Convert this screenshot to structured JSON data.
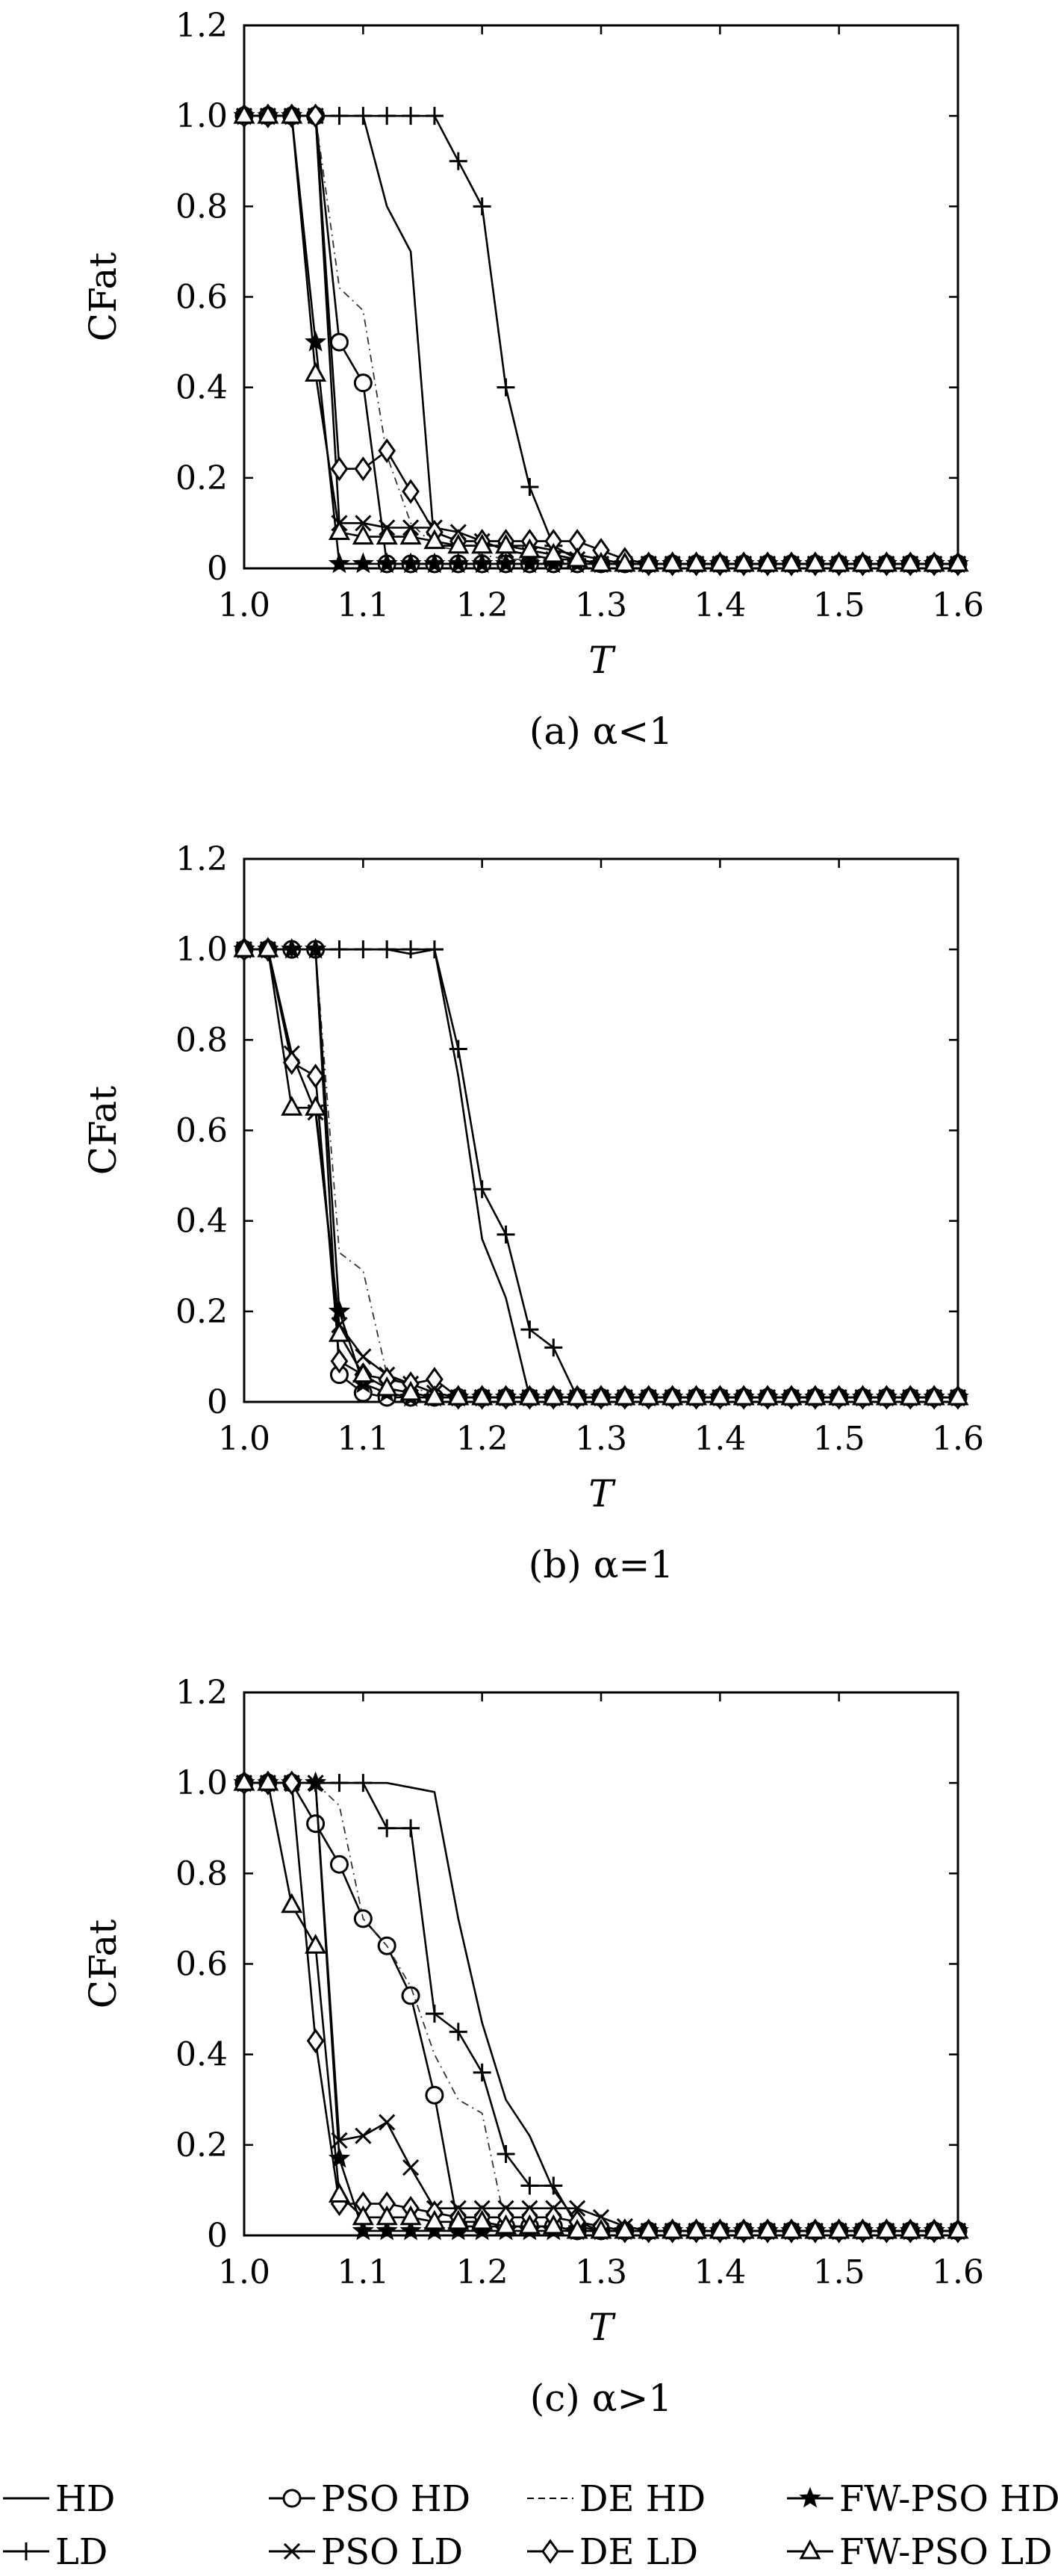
{
  "legend": [
    {
      "label": "HD",
      "marker": "none",
      "dash": "solid"
    },
    {
      "label": "PSO HD",
      "marker": "circle",
      "dash": "solid"
    },
    {
      "label": "DE HD",
      "marker": "none",
      "dash": "dashed"
    },
    {
      "label": "FW-PSO HD",
      "marker": "star",
      "dash": "solid"
    },
    {
      "label": "LD",
      "marker": "plus",
      "dash": "solid"
    },
    {
      "label": "PSO LD",
      "marker": "x",
      "dash": "solid"
    },
    {
      "label": "DE LD",
      "marker": "diamond",
      "dash": "solid"
    },
    {
      "label": "FW-PSO LD",
      "marker": "triangle",
      "dash": "solid"
    }
  ],
  "chart_data": [
    {
      "type": "line",
      "caption": "(a) α<1",
      "xlabel": "T",
      "ylabel": "CFat",
      "xlim": [
        1.0,
        1.6
      ],
      "ylim": [
        0,
        1.2
      ],
      "xticks": [
        "1.0",
        "1.1",
        "1.2",
        "1.3",
        "1.4",
        "1.5",
        "1.6"
      ],
      "yticks": [
        "0",
        "0.2",
        "0.4",
        "0.6",
        "0.8",
        "1.0",
        "1.2"
      ],
      "grid": false,
      "x": [
        1.0,
        1.02,
        1.04,
        1.06,
        1.08,
        1.1,
        1.12,
        1.14,
        1.16,
        1.18,
        1.2,
        1.22,
        1.24,
        1.26,
        1.28,
        1.3,
        1.32,
        1.34,
        1.36,
        1.38,
        1.4,
        1.42,
        1.44,
        1.46,
        1.48,
        1.5,
        1.52,
        1.54,
        1.56,
        1.58,
        1.6
      ],
      "series": [
        {
          "name": "HD",
          "values": [
            1.0,
            1.0,
            1.0,
            1.0,
            1.0,
            1.0,
            0.8,
            0.7,
            0.05,
            0.05,
            0.05,
            0.05,
            0.05,
            0.04,
            0.03,
            0.02,
            0.01,
            0.01,
            0.01,
            0.01,
            0.01,
            0.01,
            0.01,
            0.01,
            0.01,
            0.01,
            0.01,
            0.01,
            0.01,
            0.01,
            0.01
          ]
        },
        {
          "name": "PSO HD",
          "values": [
            1.0,
            1.0,
            1.0,
            1.0,
            0.5,
            0.41,
            0.01,
            0.01,
            0.01,
            0.01,
            0.01,
            0.01,
            0.01,
            0.01,
            0.01,
            0.01,
            0.01,
            0.01,
            0.01,
            0.01,
            0.01,
            0.01,
            0.01,
            0.01,
            0.01,
            0.01,
            0.01,
            0.01,
            0.01,
            0.01,
            0.01
          ]
        },
        {
          "name": "DE HD",
          "values": [
            1.0,
            1.0,
            1.0,
            1.0,
            0.62,
            0.57,
            0.25,
            0.1,
            0.05,
            0.04,
            0.03,
            0.02,
            0.02,
            0.02,
            0.01,
            0.01,
            0.01,
            0.01,
            0.01,
            0.01,
            0.01,
            0.01,
            0.01,
            0.01,
            0.01,
            0.01,
            0.01,
            0.01,
            0.01,
            0.01,
            0.01
          ]
        },
        {
          "name": "FW-PSO HD",
          "values": [
            1.0,
            1.0,
            1.0,
            0.5,
            0.01,
            0.01,
            0.01,
            0.01,
            0.01,
            0.01,
            0.01,
            0.01,
            0.01,
            0.01,
            0.01,
            0.01,
            0.01,
            0.01,
            0.01,
            0.01,
            0.01,
            0.01,
            0.01,
            0.01,
            0.01,
            0.01,
            0.01,
            0.01,
            0.01,
            0.01,
            0.01
          ]
        },
        {
          "name": "LD",
          "values": [
            1.0,
            1.0,
            1.0,
            1.0,
            1.0,
            1.0,
            1.0,
            1.0,
            1.0,
            0.9,
            0.8,
            0.4,
            0.18,
            0.05,
            0.02,
            0.01,
            0.01,
            0.01,
            0.01,
            0.01,
            0.01,
            0.01,
            0.01,
            0.01,
            0.01,
            0.01,
            0.01,
            0.01,
            0.01,
            0.01,
            0.01
          ]
        },
        {
          "name": "PSO LD",
          "values": [
            1.0,
            1.0,
            1.0,
            1.0,
            0.1,
            0.1,
            0.09,
            0.09,
            0.09,
            0.08,
            0.06,
            0.04,
            0.03,
            0.02,
            0.02,
            0.01,
            0.01,
            0.01,
            0.01,
            0.01,
            0.01,
            0.01,
            0.01,
            0.01,
            0.01,
            0.01,
            0.01,
            0.01,
            0.01,
            0.01,
            0.01
          ]
        },
        {
          "name": "DE LD",
          "values": [
            1.0,
            1.0,
            1.0,
            1.0,
            0.22,
            0.22,
            0.26,
            0.17,
            0.08,
            0.06,
            0.06,
            0.06,
            0.06,
            0.06,
            0.06,
            0.04,
            0.02,
            0.01,
            0.01,
            0.01,
            0.01,
            0.01,
            0.01,
            0.01,
            0.01,
            0.01,
            0.01,
            0.01,
            0.01,
            0.01,
            0.01
          ]
        },
        {
          "name": "FW-PSO LD",
          "values": [
            1.0,
            1.0,
            1.0,
            0.43,
            0.08,
            0.07,
            0.07,
            0.07,
            0.06,
            0.05,
            0.05,
            0.05,
            0.04,
            0.03,
            0.02,
            0.01,
            0.01,
            0.01,
            0.01,
            0.01,
            0.01,
            0.01,
            0.01,
            0.01,
            0.01,
            0.01,
            0.01,
            0.01,
            0.01,
            0.01,
            0.01
          ]
        }
      ]
    },
    {
      "type": "line",
      "caption": "(b) α=1",
      "xlabel": "T",
      "ylabel": "CFat",
      "xlim": [
        1.0,
        1.6
      ],
      "ylim": [
        0,
        1.2
      ],
      "xticks": [
        "1.0",
        "1.1",
        "1.2",
        "1.3",
        "1.4",
        "1.5",
        "1.6"
      ],
      "yticks": [
        "0",
        "0.2",
        "0.4",
        "0.6",
        "0.8",
        "1.0",
        "1.2"
      ],
      "grid": false,
      "x": [
        1.0,
        1.02,
        1.04,
        1.06,
        1.08,
        1.1,
        1.12,
        1.14,
        1.16,
        1.18,
        1.2,
        1.22,
        1.24,
        1.26,
        1.28,
        1.3,
        1.32,
        1.34,
        1.36,
        1.38,
        1.4,
        1.42,
        1.44,
        1.46,
        1.48,
        1.5,
        1.52,
        1.54,
        1.56,
        1.58,
        1.6
      ],
      "series": [
        {
          "name": "HD",
          "values": [
            1.0,
            1.0,
            1.0,
            1.0,
            1.0,
            1.0,
            1.0,
            0.99,
            1.0,
            0.72,
            0.36,
            0.23,
            0.01,
            0.01,
            0.01,
            0.01,
            0.01,
            0.01,
            0.01,
            0.01,
            0.01,
            0.01,
            0.01,
            0.01,
            0.01,
            0.01,
            0.01,
            0.01,
            0.01,
            0.01,
            0.01
          ]
        },
        {
          "name": "PSO HD",
          "values": [
            1.0,
            1.0,
            1.0,
            1.0,
            0.06,
            0.02,
            0.01,
            0.01,
            0.01,
            0.01,
            0.01,
            0.01,
            0.01,
            0.01,
            0.01,
            0.01,
            0.01,
            0.01,
            0.01,
            0.01,
            0.01,
            0.01,
            0.01,
            0.01,
            0.01,
            0.01,
            0.01,
            0.01,
            0.01,
            0.01,
            0.01
          ]
        },
        {
          "name": "DE HD",
          "values": [
            1.0,
            1.0,
            1.0,
            1.0,
            0.33,
            0.29,
            0.06,
            0.03,
            0.02,
            0.01,
            0.01,
            0.01,
            0.01,
            0.01,
            0.01,
            0.01,
            0.01,
            0.01,
            0.01,
            0.01,
            0.01,
            0.01,
            0.01,
            0.01,
            0.01,
            0.01,
            0.01,
            0.01,
            0.01,
            0.01,
            0.01
          ]
        },
        {
          "name": "FW-PSO HD",
          "values": [
            1.0,
            1.0,
            1.0,
            1.0,
            0.2,
            0.04,
            0.02,
            0.01,
            0.01,
            0.01,
            0.01,
            0.01,
            0.01,
            0.01,
            0.01,
            0.01,
            0.01,
            0.01,
            0.01,
            0.01,
            0.01,
            0.01,
            0.01,
            0.01,
            0.01,
            0.01,
            0.01,
            0.01,
            0.01,
            0.01,
            0.01
          ]
        },
        {
          "name": "LD",
          "values": [
            1.0,
            1.0,
            1.0,
            1.0,
            1.0,
            1.0,
            1.0,
            1.0,
            1.0,
            0.78,
            0.47,
            0.37,
            0.16,
            0.12,
            0.01,
            0.01,
            0.01,
            0.01,
            0.01,
            0.01,
            0.01,
            0.01,
            0.01,
            0.01,
            0.01,
            0.01,
            0.01,
            0.01,
            0.01,
            0.01,
            0.01
          ]
        },
        {
          "name": "PSO LD",
          "values": [
            1.0,
            1.0,
            0.77,
            0.64,
            0.17,
            0.1,
            0.06,
            0.04,
            0.02,
            0.01,
            0.01,
            0.01,
            0.01,
            0.01,
            0.01,
            0.01,
            0.01,
            0.01,
            0.01,
            0.01,
            0.01,
            0.01,
            0.01,
            0.01,
            0.01,
            0.01,
            0.01,
            0.01,
            0.01,
            0.01,
            0.01
          ]
        },
        {
          "name": "DE LD",
          "values": [
            1.0,
            1.0,
            0.75,
            0.72,
            0.09,
            0.06,
            0.05,
            0.04,
            0.05,
            0.01,
            0.01,
            0.01,
            0.01,
            0.01,
            0.01,
            0.01,
            0.01,
            0.01,
            0.01,
            0.01,
            0.01,
            0.01,
            0.01,
            0.01,
            0.01,
            0.01,
            0.01,
            0.01,
            0.01,
            0.01,
            0.01
          ]
        },
        {
          "name": "FW-PSO LD",
          "values": [
            1.0,
            1.0,
            0.65,
            0.65,
            0.15,
            0.06,
            0.03,
            0.02,
            0.01,
            0.01,
            0.01,
            0.01,
            0.01,
            0.01,
            0.01,
            0.01,
            0.01,
            0.01,
            0.01,
            0.01,
            0.01,
            0.01,
            0.01,
            0.01,
            0.01,
            0.01,
            0.01,
            0.01,
            0.01,
            0.01,
            0.01
          ]
        }
      ]
    },
    {
      "type": "line",
      "caption": "(c) α>1",
      "xlabel": "T",
      "ylabel": "CFat",
      "xlim": [
        1.0,
        1.6
      ],
      "ylim": [
        0,
        1.2
      ],
      "xticks": [
        "1.0",
        "1.1",
        "1.2",
        "1.3",
        "1.4",
        "1.5",
        "1.6"
      ],
      "yticks": [
        "0",
        "0.2",
        "0.4",
        "0.6",
        "0.8",
        "1.0",
        "1.2"
      ],
      "grid": false,
      "x": [
        1.0,
        1.02,
        1.04,
        1.06,
        1.08,
        1.1,
        1.12,
        1.14,
        1.16,
        1.18,
        1.2,
        1.22,
        1.24,
        1.26,
        1.28,
        1.3,
        1.32,
        1.34,
        1.36,
        1.38,
        1.4,
        1.42,
        1.44,
        1.46,
        1.48,
        1.5,
        1.52,
        1.54,
        1.56,
        1.58,
        1.6
      ],
      "series": [
        {
          "name": "HD",
          "values": [
            1.0,
            1.0,
            1.0,
            1.0,
            1.0,
            1.0,
            1.0,
            0.99,
            0.98,
            0.7,
            0.47,
            0.3,
            0.22,
            0.1,
            0.03,
            0.01,
            0.01,
            0.01,
            0.01,
            0.01,
            0.01,
            0.01,
            0.01,
            0.01,
            0.01,
            0.01,
            0.01,
            0.01,
            0.01,
            0.01,
            0.01
          ]
        },
        {
          "name": "PSO HD",
          "values": [
            1.0,
            1.0,
            1.0,
            0.91,
            0.82,
            0.7,
            0.64,
            0.53,
            0.31,
            0.02,
            0.02,
            0.02,
            0.02,
            0.02,
            0.01,
            0.01,
            0.01,
            0.01,
            0.01,
            0.01,
            0.01,
            0.01,
            0.01,
            0.01,
            0.01,
            0.01,
            0.01,
            0.01,
            0.01,
            0.01,
            0.01
          ]
        },
        {
          "name": "DE HD",
          "values": [
            1.0,
            1.0,
            1.0,
            1.0,
            0.95,
            0.7,
            0.64,
            0.55,
            0.4,
            0.3,
            0.27,
            0.02,
            0.02,
            0.02,
            0.01,
            0.01,
            0.01,
            0.01,
            0.01,
            0.01,
            0.01,
            0.01,
            0.01,
            0.01,
            0.01,
            0.01,
            0.01,
            0.01,
            0.01,
            0.01,
            0.01
          ]
        },
        {
          "name": "FW-PSO HD",
          "values": [
            1.0,
            1.0,
            1.0,
            1.0,
            0.17,
            0.01,
            0.01,
            0.01,
            0.01,
            0.01,
            0.01,
            0.01,
            0.01,
            0.01,
            0.01,
            0.01,
            0.01,
            0.01,
            0.01,
            0.01,
            0.01,
            0.01,
            0.01,
            0.01,
            0.01,
            0.01,
            0.01,
            0.01,
            0.01,
            0.01,
            0.01
          ]
        },
        {
          "name": "LD",
          "values": [
            1.0,
            1.0,
            1.0,
            1.0,
            1.0,
            1.0,
            0.9,
            0.9,
            0.49,
            0.45,
            0.36,
            0.18,
            0.11,
            0.11,
            0.02,
            0.01,
            0.01,
            0.01,
            0.01,
            0.01,
            0.01,
            0.01,
            0.01,
            0.01,
            0.01,
            0.01,
            0.01,
            0.01,
            0.01,
            0.01,
            0.01
          ]
        },
        {
          "name": "PSO LD",
          "values": [
            1.0,
            1.0,
            1.0,
            1.0,
            0.21,
            0.22,
            0.25,
            0.15,
            0.06,
            0.06,
            0.06,
            0.06,
            0.06,
            0.06,
            0.06,
            0.04,
            0.02,
            0.01,
            0.01,
            0.01,
            0.01,
            0.01,
            0.01,
            0.01,
            0.01,
            0.01,
            0.01,
            0.01,
            0.01,
            0.01,
            0.01
          ]
        },
        {
          "name": "DE LD",
          "values": [
            1.0,
            1.0,
            1.0,
            0.43,
            0.07,
            0.07,
            0.07,
            0.06,
            0.05,
            0.04,
            0.04,
            0.04,
            0.04,
            0.04,
            0.03,
            0.02,
            0.01,
            0.01,
            0.01,
            0.01,
            0.01,
            0.01,
            0.01,
            0.01,
            0.01,
            0.01,
            0.01,
            0.01,
            0.01,
            0.01,
            0.01
          ]
        },
        {
          "name": "FW-PSO LD",
          "values": [
            1.0,
            1.0,
            0.73,
            0.64,
            0.09,
            0.04,
            0.04,
            0.04,
            0.03,
            0.03,
            0.03,
            0.02,
            0.02,
            0.02,
            0.01,
            0.01,
            0.01,
            0.01,
            0.01,
            0.01,
            0.01,
            0.01,
            0.01,
            0.01,
            0.01,
            0.01,
            0.01,
            0.01,
            0.01,
            0.01,
            0.01
          ]
        }
      ]
    }
  ]
}
